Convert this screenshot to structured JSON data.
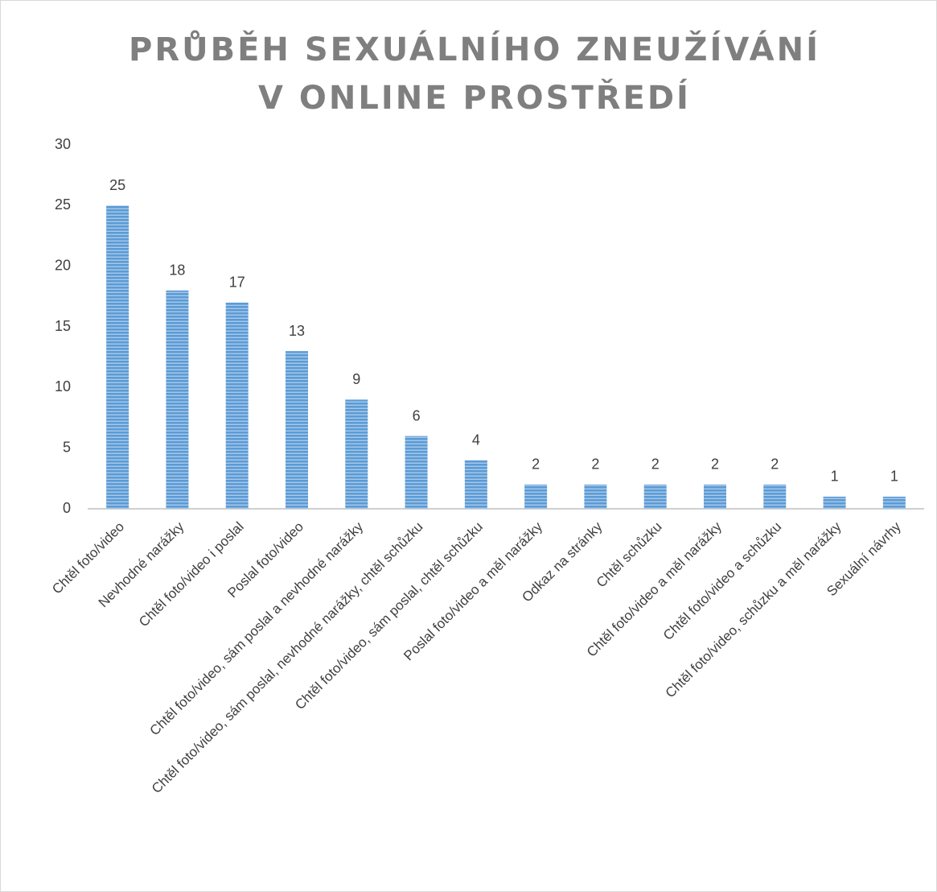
{
  "chart_data": {
    "type": "bar",
    "title": "PRŮBĚH SEXUÁLNÍHO ZNEUŽÍVÁNÍ V ONLINE PROSTŘEDÍ",
    "categories": [
      "Chtěl foto/video",
      "Nevhodné narážky",
      "Chtěl foto/video i poslal",
      "Poslal foto/video",
      "Chtěl foto/video, sám poslal a nevhodné narážky",
      "Chtěl foto/video, sám poslal, nevhodné narážky, chtěl schůzku",
      "Chtěl foto/video, sám poslal, chtěl schůzku",
      "Poslal foto/video a měl narážky",
      "Odkaz na stránky",
      "Chtěl schůzku",
      "Chtěl foto/video a měl narážky",
      "Chtěl foto/video a schůzku",
      "Chtěl foto/video, schůzku a měl narážky",
      "Sexuální návrhy"
    ],
    "values": [
      25,
      18,
      17,
      13,
      9,
      6,
      4,
      2,
      2,
      2,
      2,
      2,
      1,
      1
    ],
    "color": "#5b9bd5",
    "ylim": [
      0,
      30
    ],
    "yticks": [
      0,
      5,
      10,
      15,
      20,
      25,
      30
    ],
    "grid": false
  }
}
